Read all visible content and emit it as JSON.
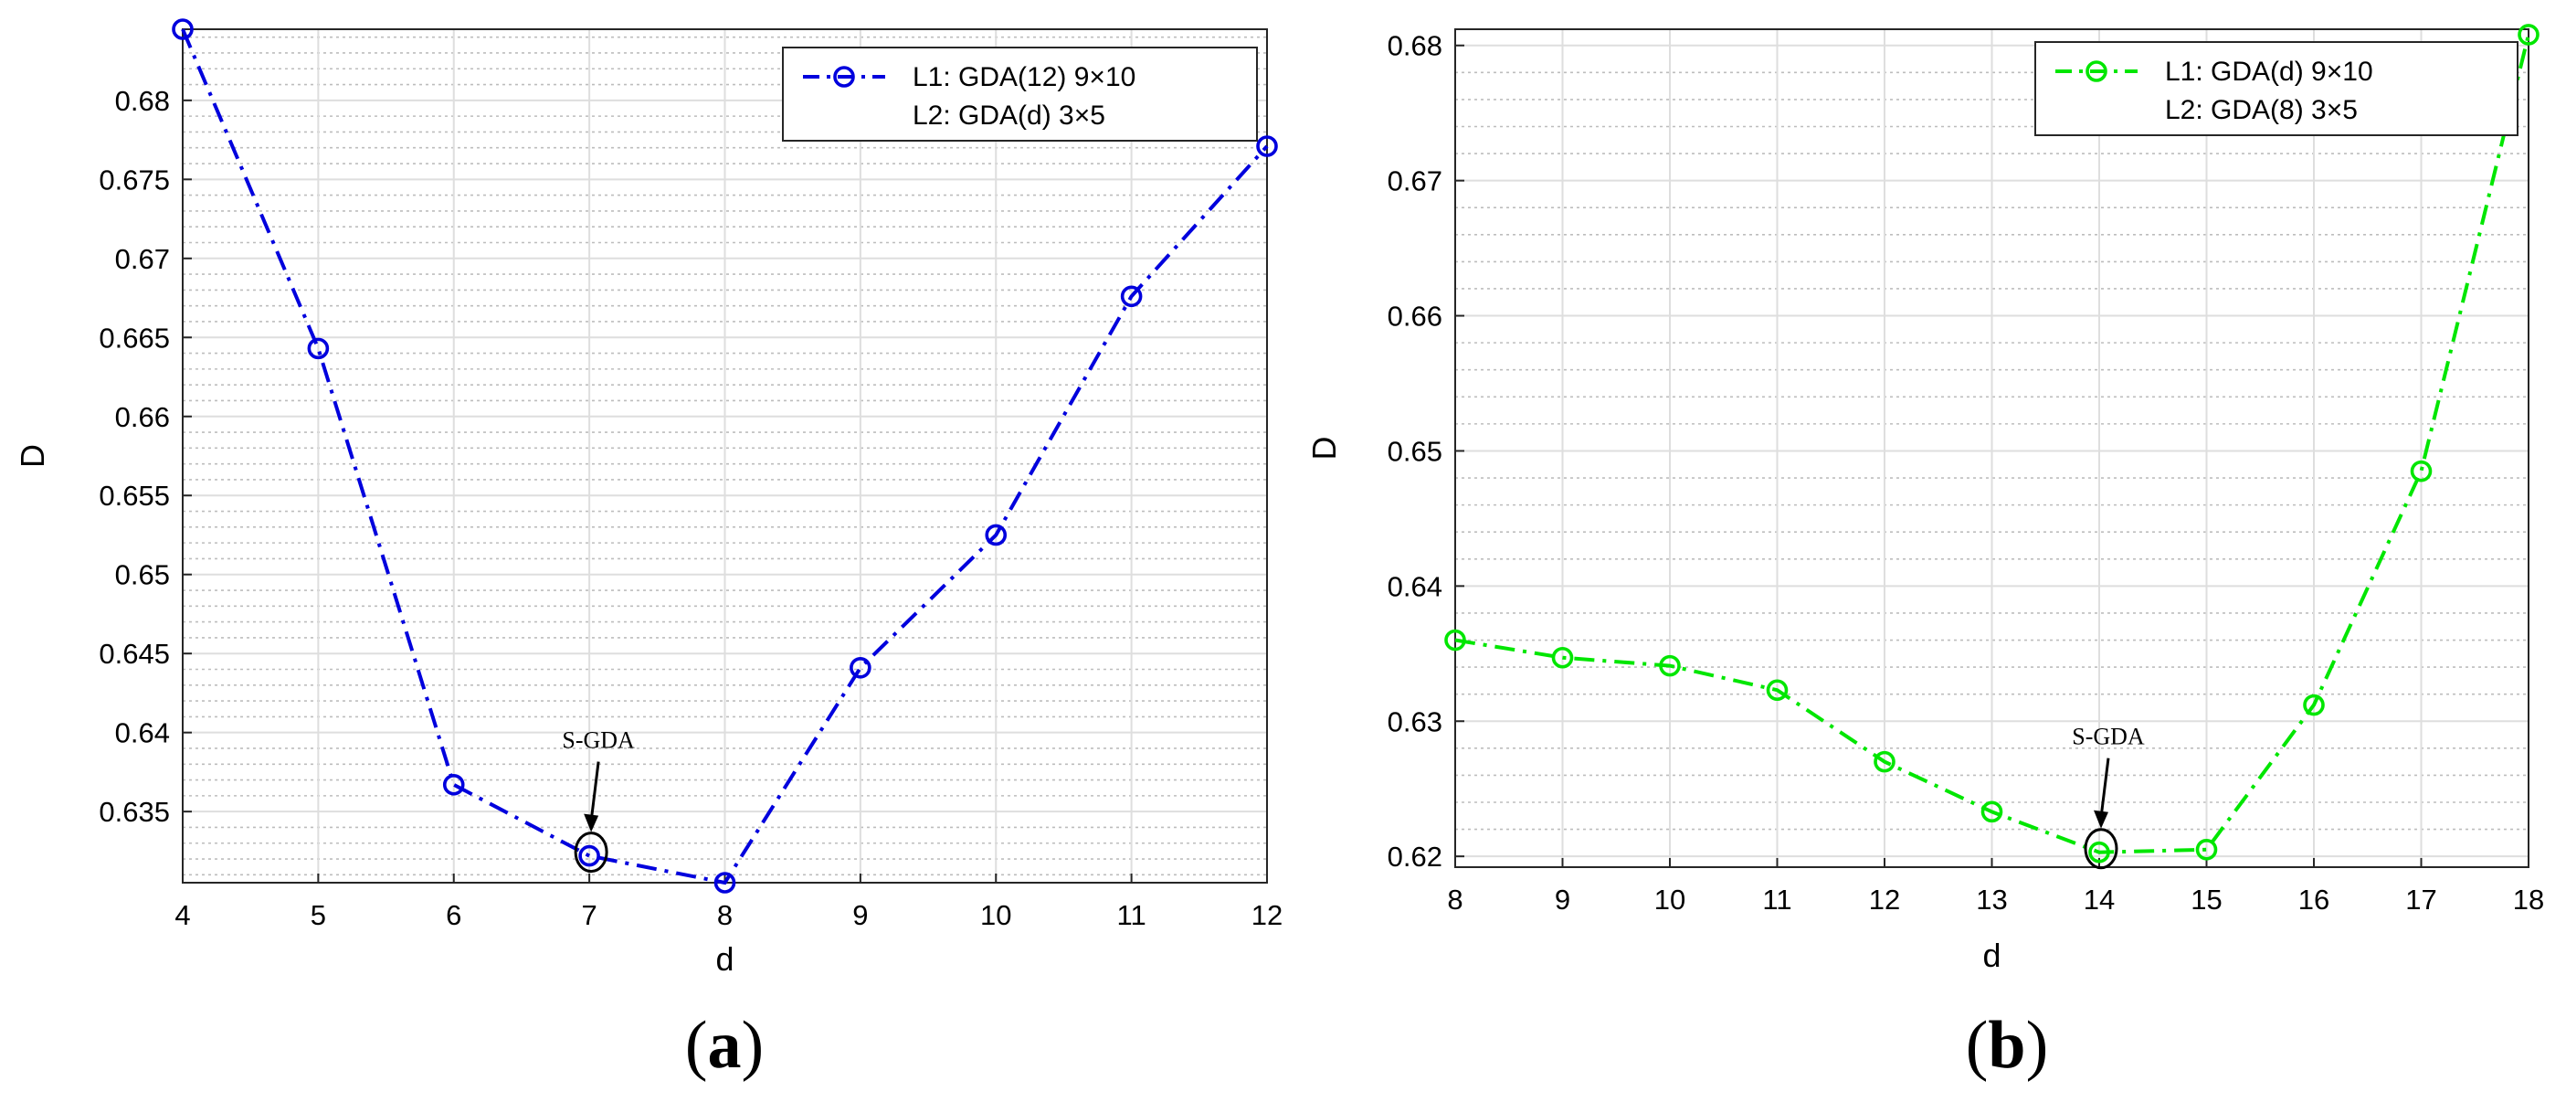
{
  "chart_data": [
    {
      "type": "line",
      "panel": "a",
      "caption_open": "(",
      "caption_letter": "a",
      "caption_close": ")",
      "xlabel": "d",
      "ylabel": "D",
      "xlim": [
        4,
        12
      ],
      "ylim": [
        0.6305,
        0.6845
      ],
      "xticks": [
        4,
        5,
        6,
        7,
        8,
        9,
        10,
        11,
        12
      ],
      "yticks": [
        0.635,
        0.64,
        0.645,
        0.65,
        0.655,
        0.66,
        0.665,
        0.67,
        0.675,
        0.68
      ],
      "ytick_labels": [
        "0.635",
        "0.64",
        "0.645",
        "0.65",
        "0.655",
        "0.66",
        "0.665",
        "0.67",
        "0.675",
        "0.68"
      ],
      "grid": true,
      "minor_grid": true,
      "series": [
        {
          "name": "L1: GDA(12) 9×10 / L2: GDA(d) 3×5",
          "color": "#0000dd",
          "linestyle": "dash-dot",
          "marker": "circle",
          "x": [
            4,
            5,
            6,
            7,
            8,
            9,
            10,
            11,
            12
          ],
          "values": [
            0.6845,
            0.6643,
            0.6367,
            0.6322,
            0.6305,
            0.6441,
            0.6525,
            0.6676,
            0.6771
          ]
        }
      ],
      "legend": {
        "line1": "L1: GDA(12) 9×10",
        "line2": "L2: GDA(d)   3×5",
        "position": "top-right"
      },
      "annotation": {
        "text": "S-GDA",
        "x": 7,
        "y": 0.6322
      }
    },
    {
      "type": "line",
      "panel": "b",
      "caption_open": "(",
      "caption_letter": "b",
      "caption_close": ")",
      "xlabel": "d",
      "ylabel": "D",
      "xlim": [
        8,
        18
      ],
      "ylim": [
        0.6192,
        0.6812
      ],
      "xticks": [
        8,
        9,
        10,
        11,
        12,
        13,
        14,
        15,
        16,
        17,
        18
      ],
      "yticks": [
        0.62,
        0.63,
        0.64,
        0.65,
        0.66,
        0.67,
        0.68
      ],
      "ytick_labels": [
        "0.62",
        "0.63",
        "0.64",
        "0.65",
        "0.66",
        "0.67",
        "0.68"
      ],
      "grid": true,
      "minor_grid": true,
      "series": [
        {
          "name": "L1: GDA(d) 9×10 / L2: GDA(8) 3×5",
          "color": "#00e600",
          "linestyle": "dash-dot",
          "marker": "circle",
          "x": [
            8,
            9,
            10,
            11,
            12,
            13,
            14,
            15,
            16,
            17,
            18
          ],
          "values": [
            0.636,
            0.6347,
            0.6341,
            0.6323,
            0.627,
            0.6233,
            0.6203,
            0.6205,
            0.6312,
            0.6485,
            0.6808
          ]
        }
      ],
      "legend": {
        "line1": "L1:  GDA(d) 9×10",
        "line2": "L2:  GDA(8) 3×5",
        "position": "top-right"
      },
      "annotation": {
        "text": "S-GDA",
        "x": 14,
        "y": 0.6203
      }
    }
  ]
}
